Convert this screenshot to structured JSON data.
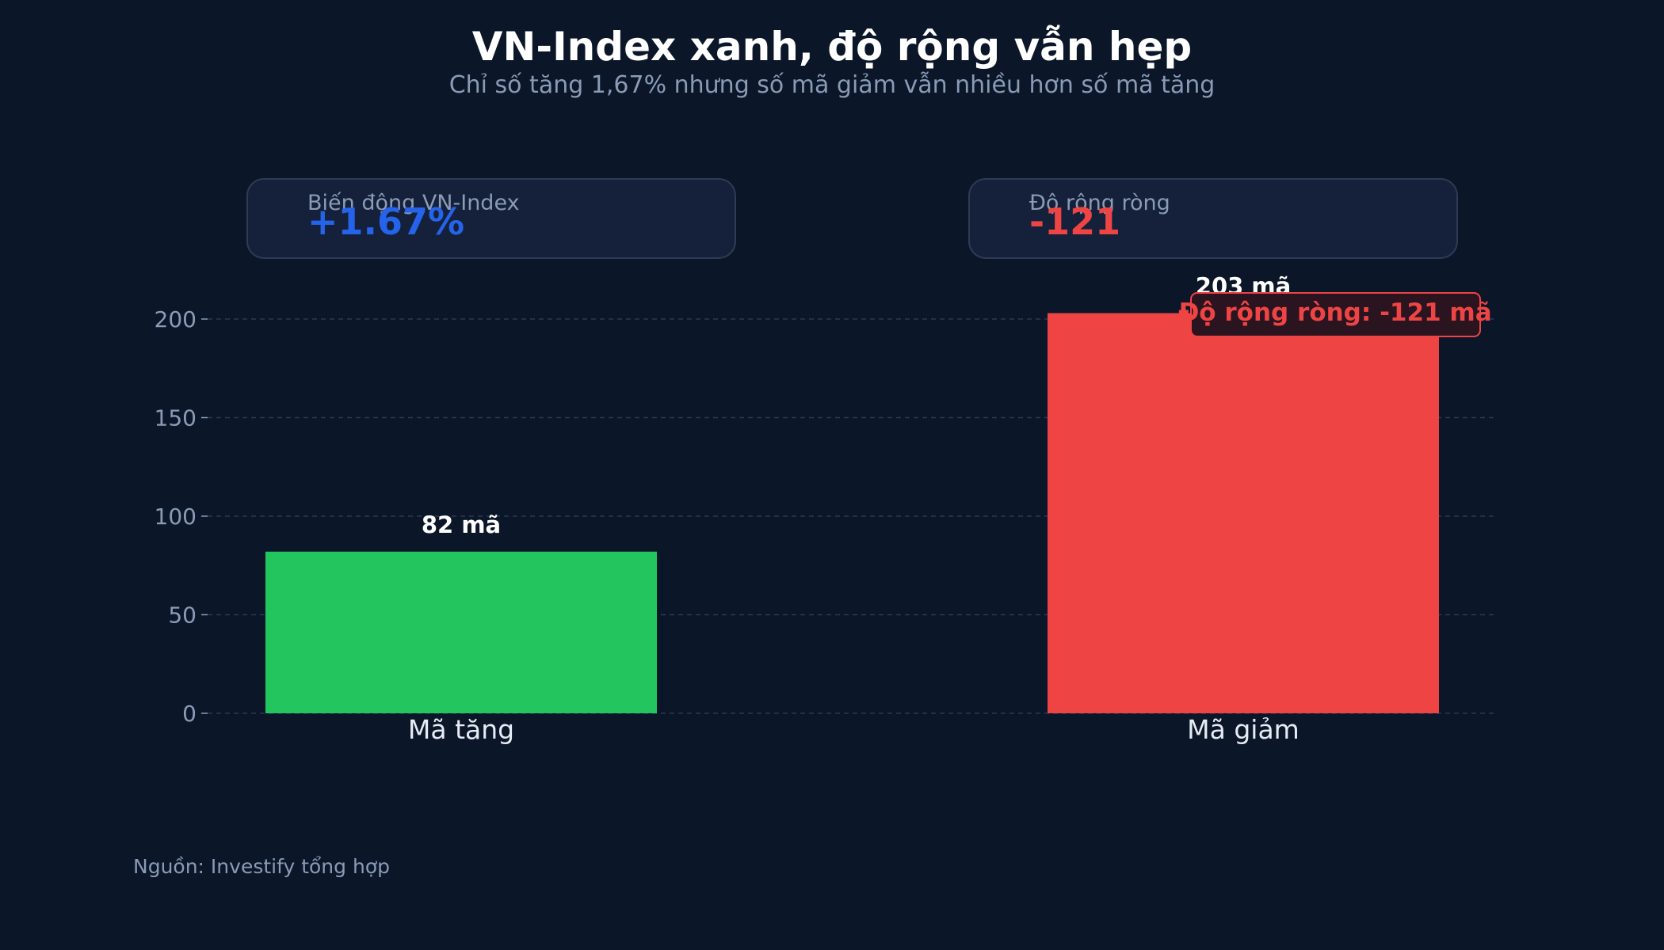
{
  "header": {
    "title": "VN-Index xanh, độ rộng vẫn hẹp",
    "subtitle": "Chỉ số tăng 1,67% nhưng số mã giảm vẫn nhiều hơn số mã tăng"
  },
  "kpis": [
    {
      "label": "Biến động VN-Index",
      "value": "+1.67%",
      "color": "#2563eb"
    },
    {
      "label": "Độ rộng ròng",
      "value": "-121",
      "color": "#ef4444"
    }
  ],
  "source": "Nguồn: Investify tổng hợp",
  "colors": {
    "background": "#0b1628",
    "card": "#15213a",
    "grid": "#2b3950",
    "muted_text": "#8a9bb6"
  },
  "chart_data": {
    "type": "bar",
    "categories": [
      "Mã tăng",
      "Mã giảm"
    ],
    "values": [
      82,
      203
    ],
    "data_labels": [
      "82 mã",
      "203 mã"
    ],
    "colors": [
      "#22c55e",
      "#ef4444"
    ],
    "ylim": [
      0,
      225
    ],
    "yticks": [
      0,
      50,
      100,
      150,
      200
    ],
    "grid": true,
    "annotation": {
      "text": "Độ rộng ròng: -121 mã",
      "category": "Mã giảm",
      "color": "#ef4444"
    }
  }
}
